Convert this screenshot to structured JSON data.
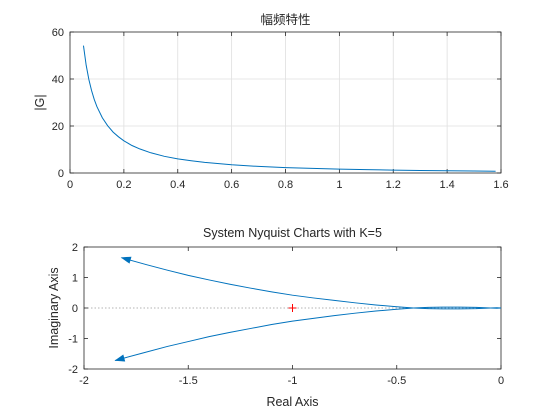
{
  "colors": {
    "line": "#0072bd",
    "grid": "#dfdfdf",
    "axis": "#262626",
    "critical_point": "#ff0000",
    "zero_line": "#9a9a9a"
  },
  "chart_data": [
    {
      "type": "line",
      "title": "幅频特性",
      "xlabel": "",
      "ylabel": "|G|",
      "xlim": [
        0,
        1.6
      ],
      "ylim": [
        0,
        60
      ],
      "xticks": [
        0,
        0.2,
        0.4,
        0.6,
        0.8,
        1,
        1.2,
        1.4,
        1.6
      ],
      "yticks": [
        0,
        20,
        40,
        60
      ],
      "xtick_labels": [
        "0",
        "0.2",
        "0.4",
        "0.6",
        "0.8",
        "1",
        "1.2",
        "1.4",
        "1.6"
      ],
      "ytick_labels": [
        "0",
        "20",
        "40",
        "60"
      ],
      "grid": true,
      "series": [
        {
          "x": [
            0.05,
            0.06,
            0.07,
            0.08,
            0.09,
            0.1,
            0.12,
            0.14,
            0.16,
            0.18,
            0.2,
            0.23,
            0.26,
            0.3,
            0.35,
            0.4,
            0.45,
            0.5,
            0.6,
            0.7,
            0.8,
            0.9,
            1.0,
            1.1,
            1.2,
            1.3,
            1.4,
            1.5,
            1.58
          ],
          "y": [
            54.2,
            45.9,
            39.8,
            35.1,
            31.3,
            28.2,
            23.5,
            20.1,
            17.4,
            15.4,
            13.7,
            11.7,
            10.2,
            8.6,
            7.1,
            6.0,
            5.2,
            4.5,
            3.5,
            2.8,
            2.3,
            1.95,
            1.65,
            1.42,
            1.23,
            1.07,
            0.94,
            0.83,
            0.75
          ]
        }
      ]
    },
    {
      "type": "line",
      "title": "System Nyquist Charts with K=5",
      "xlabel": "Real Axis",
      "ylabel": "Imaginary Axis",
      "xlim": [
        -2,
        0
      ],
      "ylim": [
        -2,
        2
      ],
      "xticks": [
        -2,
        -1.5,
        -1,
        -0.5,
        0
      ],
      "yticks": [
        -2,
        -1,
        0,
        1,
        2
      ],
      "xtick_labels": [
        "-2",
        "-1.5",
        "-1",
        "-0.5",
        "0"
      ],
      "ytick_labels": [
        "-2",
        "-1",
        "0",
        "1",
        "2"
      ],
      "grid": false,
      "critical_point": [
        -1,
        0
      ],
      "series": [
        {
          "x": [
            -1.82,
            -1.7,
            -1.6,
            -1.5,
            -1.4,
            -1.3,
            -1.2,
            -1.1,
            -1.0,
            -0.9,
            -0.8,
            -0.7,
            -0.6,
            -0.5,
            -0.42,
            -0.35,
            -0.28,
            -0.2,
            -0.12,
            -0.05,
            -0.02,
            0
          ],
          "y": [
            1.65,
            1.42,
            1.24,
            1.07,
            0.92,
            0.78,
            0.65,
            0.53,
            0.42,
            0.33,
            0.25,
            0.17,
            0.1,
            0.04,
            0.0,
            -0.02,
            -0.03,
            -0.03,
            -0.02,
            0.0,
            0.01,
            0.0
          ]
        },
        {
          "x": [
            -1.85,
            -1.72,
            -1.6,
            -1.5,
            -1.4,
            -1.3,
            -1.2,
            -1.1,
            -1.0,
            -0.9,
            -0.8,
            -0.7,
            -0.6,
            -0.5,
            -0.42,
            -0.35,
            -0.28,
            -0.2,
            -0.12,
            -0.05,
            -0.02,
            0
          ],
          "y": [
            -1.72,
            -1.48,
            -1.26,
            -1.1,
            -0.94,
            -0.8,
            -0.67,
            -0.54,
            -0.43,
            -0.34,
            -0.25,
            -0.17,
            -0.1,
            -0.04,
            0.0,
            0.02,
            0.03,
            0.03,
            0.02,
            0.0,
            -0.01,
            0.0
          ]
        }
      ]
    }
  ]
}
